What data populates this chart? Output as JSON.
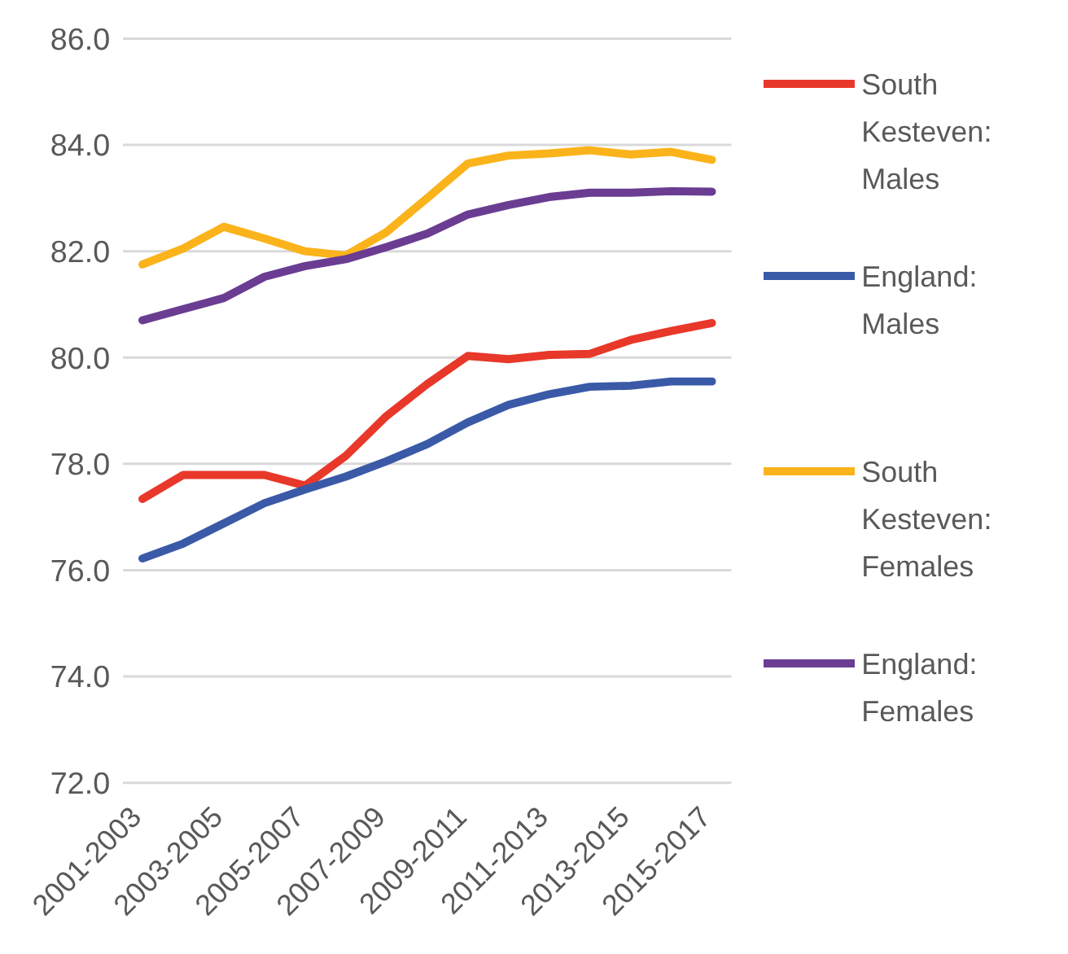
{
  "chart_data": {
    "type": "line",
    "categories": [
      "2001-2003",
      null,
      "2003-2005",
      null,
      "2005-2007",
      null,
      "2007-2009",
      null,
      "2009-2011",
      null,
      "2011-2013",
      null,
      "2013-2015",
      null,
      "2015-2017"
    ],
    "series": [
      {
        "name": "South Kesteven: Males",
        "color": "#e8382a",
        "values": [
          77.34,
          77.79,
          77.79,
          77.79,
          77.59,
          78.15,
          78.9,
          79.5,
          80.03,
          79.97,
          80.05,
          80.07,
          80.33,
          80.5,
          80.65
        ]
      },
      {
        "name": "England: Males",
        "color": "#3a5aa8",
        "values": [
          76.22,
          76.5,
          76.88,
          77.26,
          77.52,
          77.76,
          78.05,
          78.37,
          78.78,
          79.11,
          79.31,
          79.45,
          79.47,
          79.55,
          79.55
        ]
      },
      {
        "name": "South Kesteven: Females",
        "color": "#fbb31b",
        "values": [
          81.75,
          82.05,
          82.46,
          82.24,
          82.0,
          81.92,
          82.36,
          83.0,
          83.65,
          83.8,
          83.84,
          83.9,
          83.82,
          83.87,
          83.72
        ]
      },
      {
        "name": "England: Females",
        "color": "#6a3d92",
        "values": [
          80.7,
          80.91,
          81.12,
          81.52,
          81.72,
          81.85,
          82.08,
          82.33,
          82.69,
          82.87,
          83.02,
          83.1,
          83.1,
          83.13,
          83.12
        ]
      }
    ],
    "ylim": [
      72,
      86
    ],
    "yticks": [
      {
        "value": 72,
        "label": "72.0"
      },
      {
        "value": 74,
        "label": "74.0"
      },
      {
        "value": 76,
        "label": "76.0"
      },
      {
        "value": 78,
        "label": "78.0"
      },
      {
        "value": 80,
        "label": "80.0"
      },
      {
        "value": 82,
        "label": "82.0"
      },
      {
        "value": 84,
        "label": "84.0"
      },
      {
        "value": 86,
        "label": "86.0"
      }
    ],
    "grid": "y",
    "legend": "right",
    "marker": "none",
    "line_style": "solid"
  }
}
